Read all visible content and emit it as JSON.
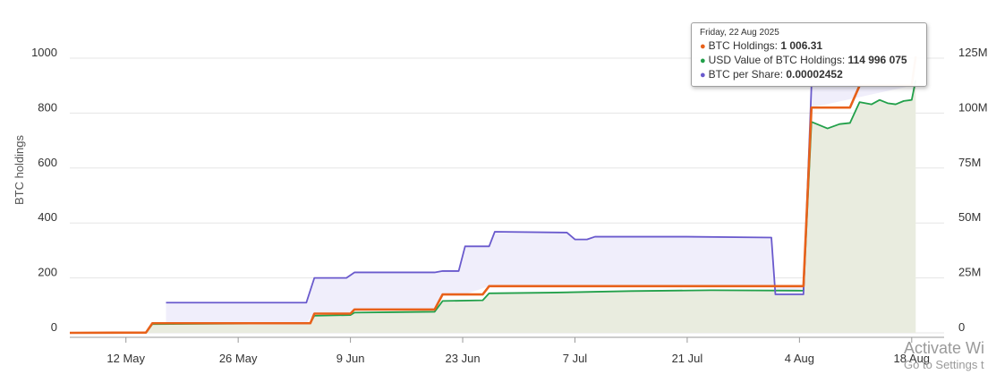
{
  "chart_data": {
    "type": "line",
    "y_left_label": "BTC holdings",
    "y_left_ticks": [
      "0",
      "200",
      "400",
      "600",
      "800",
      "1000"
    ],
    "y_left_lim": [
      0,
      1000
    ],
    "y_right_ticks": [
      "0",
      "25M",
      "50M",
      "75M",
      "100M",
      "125M"
    ],
    "y_right_lim": [
      0,
      125000000
    ],
    "x_ticks": [
      "12 May",
      "26 May",
      "9 Jun",
      "23 Jun",
      "7 Jul",
      "21 Jul",
      "4 Aug",
      "18 Aug"
    ],
    "grid": true,
    "series": [
      {
        "name": "BTC Holdings",
        "color": "#e8611a",
        "axis": "left",
        "points": [
          [
            0,
            0
          ],
          [
            9.5,
            1
          ],
          [
            10.3,
            35
          ],
          [
            30,
            35
          ],
          [
            30.5,
            70
          ],
          [
            35,
            70
          ],
          [
            35.5,
            85
          ],
          [
            45.5,
            85
          ],
          [
            46.5,
            140
          ],
          [
            51.5,
            140
          ],
          [
            52.3,
            170
          ],
          [
            91.5,
            170
          ],
          [
            92.5,
            820
          ],
          [
            97.3,
            820
          ],
          [
            98.5,
            900
          ],
          [
            105,
            900
          ],
          [
            105.5,
            1006.31
          ]
        ]
      },
      {
        "name": "USD Value of BTC Holdings",
        "color": "#22a04a",
        "axis": "right",
        "area": true,
        "points": [
          [
            0,
            0
          ],
          [
            9.5,
            0
          ],
          [
            10.3,
            4000000
          ],
          [
            20,
            4200000
          ],
          [
            30,
            4400000
          ],
          [
            30.5,
            7800000
          ],
          [
            35,
            8100000
          ],
          [
            35.5,
            9200000
          ],
          [
            40,
            9400000
          ],
          [
            45.5,
            9600000
          ],
          [
            46.5,
            14500000
          ],
          [
            51.5,
            14800000
          ],
          [
            52.3,
            18000000
          ],
          [
            60,
            18300000
          ],
          [
            70,
            19000000
          ],
          [
            80,
            19400000
          ],
          [
            91.5,
            19200000
          ],
          [
            92.5,
            96000000
          ],
          [
            94.5,
            93000000
          ],
          [
            96,
            95000000
          ],
          [
            97.3,
            95500000
          ],
          [
            98.5,
            105000000
          ],
          [
            100,
            104000000
          ],
          [
            101,
            106000000
          ],
          [
            102,
            104500000
          ],
          [
            103,
            104000000
          ],
          [
            104,
            105500000
          ],
          [
            105,
            106000000
          ],
          [
            105.5,
            114996075
          ]
        ]
      },
      {
        "name": "BTC per Share",
        "color": "#6a5acd",
        "axis": "left",
        "area": true,
        "points": [
          [
            12,
            110
          ],
          [
            29.5,
            110
          ],
          [
            30.5,
            200
          ],
          [
            34.5,
            200
          ],
          [
            35.5,
            220
          ],
          [
            45.5,
            220
          ],
          [
            46.5,
            225
          ],
          [
            48.5,
            225
          ],
          [
            49.3,
            315
          ],
          [
            52.3,
            315
          ],
          [
            53,
            368
          ],
          [
            62,
            365
          ],
          [
            63,
            340
          ],
          [
            64.5,
            340
          ],
          [
            65.5,
            350
          ],
          [
            77,
            350
          ],
          [
            87.5,
            347
          ],
          [
            88,
            140
          ],
          [
            91.5,
            140
          ],
          [
            92.5,
            900
          ],
          [
            105,
            900
          ],
          [
            105.5,
            1000
          ]
        ]
      }
    ],
    "tooltip": {
      "date": "Friday, 22 Aug 2025",
      "rows": [
        {
          "label": "BTC Holdings:",
          "value": "1 006.31",
          "color": "#e8611a"
        },
        {
          "label": "USD Value of BTC Holdings:",
          "value": "114 996 075",
          "color": "#22a04a"
        },
        {
          "label": "BTC per Share:",
          "value": "0.00002452",
          "color": "#6a5acd"
        }
      ]
    }
  },
  "watermark": {
    "line1": "Activate Wi",
    "line2": "Go to Settings t"
  }
}
